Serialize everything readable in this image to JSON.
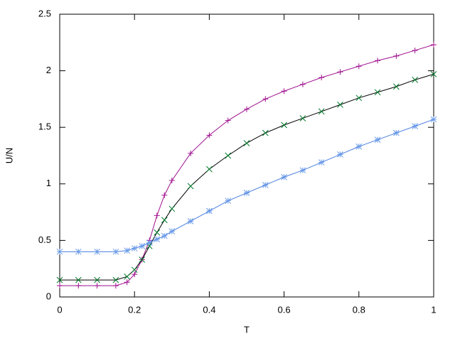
{
  "chart_data": {
    "type": "line",
    "xlabel": "T",
    "ylabel": "U/N",
    "x": [
      0,
      0.05,
      0.1,
      0.15,
      0.18,
      0.2,
      0.22,
      0.24,
      0.26,
      0.28,
      0.3,
      0.35,
      0.4,
      0.45,
      0.5,
      0.55,
      0.6,
      0.65,
      0.7,
      0.75,
      0.8,
      0.85,
      0.9,
      0.95,
      1.0
    ],
    "series": [
      {
        "color": "#a0108f",
        "line_color": "#a0108f",
        "marker": "+",
        "values": [
          0.1,
          0.1,
          0.1,
          0.1,
          0.13,
          0.2,
          0.33,
          0.5,
          0.72,
          0.9,
          1.03,
          1.27,
          1.43,
          1.56,
          1.66,
          1.75,
          1.82,
          1.88,
          1.94,
          1.99,
          2.04,
          2.09,
          2.13,
          2.18,
          2.23
        ]
      },
      {
        "color": "#007a2a",
        "line_color": "#000000",
        "marker": "x",
        "values": [
          0.15,
          0.15,
          0.15,
          0.15,
          0.18,
          0.24,
          0.33,
          0.45,
          0.57,
          0.68,
          0.78,
          0.98,
          1.13,
          1.25,
          1.36,
          1.45,
          1.52,
          1.58,
          1.64,
          1.7,
          1.76,
          1.81,
          1.86,
          1.92,
          1.97
        ]
      },
      {
        "color": "#6b9be8",
        "line_color": "#4a7fe0",
        "marker": "*",
        "values": [
          0.4,
          0.4,
          0.4,
          0.4,
          0.41,
          0.43,
          0.45,
          0.48,
          0.51,
          0.54,
          0.58,
          0.67,
          0.76,
          0.85,
          0.92,
          0.99,
          1.06,
          1.12,
          1.19,
          1.26,
          1.33,
          1.39,
          1.45,
          1.51,
          1.57
        ]
      }
    ],
    "xlim": [
      0,
      1
    ],
    "ylim": [
      0,
      2.5
    ],
    "xticks": [
      0,
      0.2,
      0.4,
      0.6,
      0.8,
      1
    ],
    "yticks": [
      0,
      0.5,
      1,
      1.5,
      2,
      2.5
    ],
    "grid": false
  }
}
